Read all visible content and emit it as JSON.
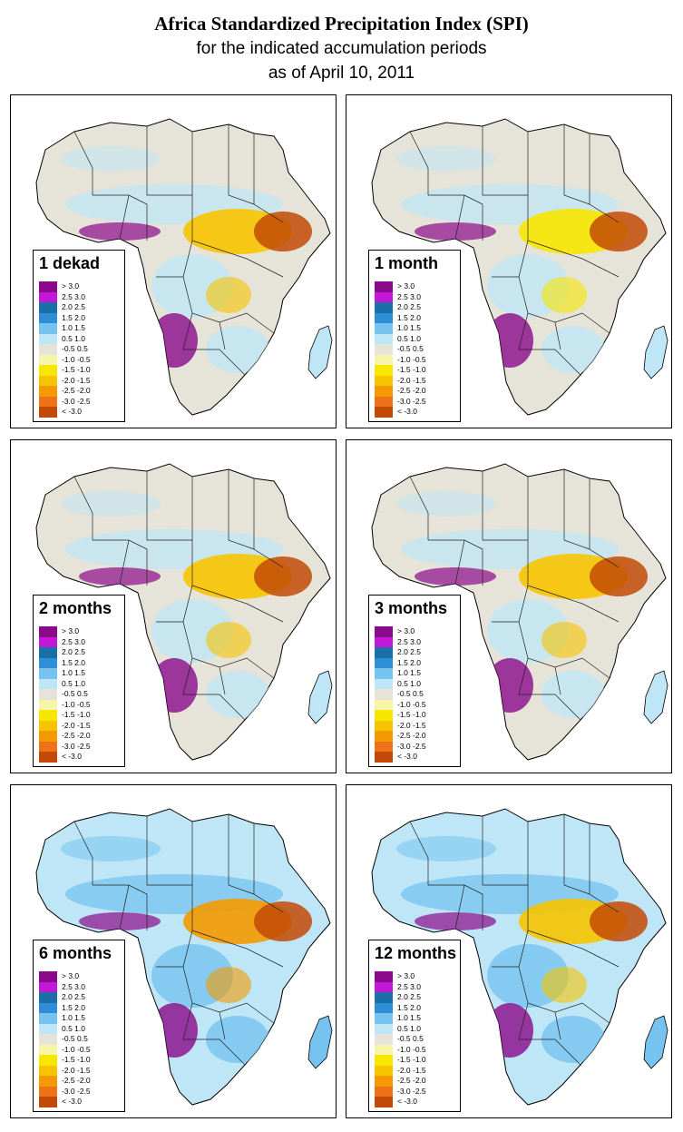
{
  "title": "Africa Standardized Precipitation Index (SPI)",
  "subtitle_1": "for the indicated accumulation periods",
  "subtitle_2": "as of April 10, 2011",
  "legend_items": [
    {
      "label": "> 3.0",
      "color": "#8b0a8b"
    },
    {
      "label": "2.5  3.0",
      "color": "#c418d8"
    },
    {
      "label": "2.0  2.5",
      "color": "#1b6fa8"
    },
    {
      "label": "1.5  2.0",
      "color": "#2f8fd6"
    },
    {
      "label": "1.0  1.5",
      "color": "#76c3f0"
    },
    {
      "label": "0.5  1.0",
      "color": "#bfe6f6"
    },
    {
      "label": "-0.5  0.5",
      "color": "#e6e4d8"
    },
    {
      "label": "-1.0 -0.5",
      "color": "#f7f5a8"
    },
    {
      "label": "-1.5 -1.0",
      "color": "#f7e600"
    },
    {
      "label": "-2.0 -1.5",
      "color": "#f7c400"
    },
    {
      "label": "-2.5 -2.0",
      "color": "#f49a00"
    },
    {
      "label": "-3.0 -2.5",
      "color": "#ee7218"
    },
    {
      "label": "< -3.0",
      "color": "#c24a06"
    }
  ],
  "panels": [
    {
      "period": "1 dekad",
      "base_color": "#e6e4d8",
      "wet_color": "#bfe6f6",
      "dry_color": "#f7c400",
      "extreme_dry": "#c24a06",
      "extreme_wet": "#8b0a8b"
    },
    {
      "period": "1 month",
      "base_color": "#e6e4d8",
      "wet_color": "#bfe6f6",
      "dry_color": "#f7e600",
      "extreme_dry": "#c24a06",
      "extreme_wet": "#8b0a8b"
    },
    {
      "period": "2 months",
      "base_color": "#e6e4d8",
      "wet_color": "#bfe6f6",
      "dry_color": "#f7c400",
      "extreme_dry": "#c24a06",
      "extreme_wet": "#8b0a8b"
    },
    {
      "period": "3 months",
      "base_color": "#e6e4d8",
      "wet_color": "#bfe6f6",
      "dry_color": "#f7c400",
      "extreme_dry": "#c24a06",
      "extreme_wet": "#8b0a8b"
    },
    {
      "period": "6 months",
      "base_color": "#bfe6f6",
      "wet_color": "#76c3f0",
      "dry_color": "#f49a00",
      "extreme_dry": "#c24a06",
      "extreme_wet": "#8b0a8b"
    },
    {
      "period": "12 months",
      "base_color": "#bfe6f6",
      "wet_color": "#76c3f0",
      "dry_color": "#f7c400",
      "extreme_dry": "#c24a06",
      "extreme_wet": "#8b0a8b"
    }
  ]
}
